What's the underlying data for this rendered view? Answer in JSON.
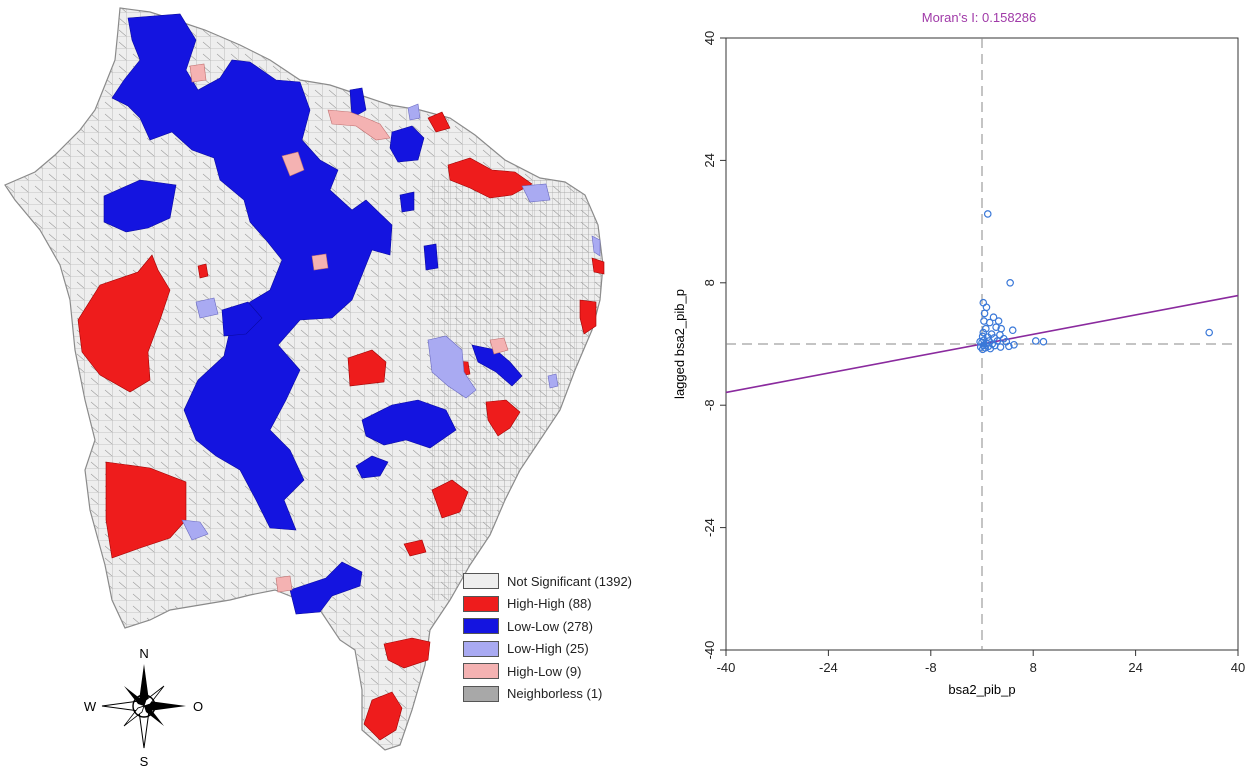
{
  "map": {
    "legend": [
      {
        "label": "Not Significant (1392)",
        "color": "#eeeeee"
      },
      {
        "label": "High-High (88)",
        "color": "#ee1c1c"
      },
      {
        "label": "Low-Low (278)",
        "color": "#1414e0"
      },
      {
        "label": "Low-High (25)",
        "color": "#a9aaf2"
      },
      {
        "label": "High-Low (9)",
        "color": "#f4b2b2"
      },
      {
        "label": "Neighborless (1)",
        "color": "#a8a8a8"
      }
    ],
    "compass": {
      "n": "N",
      "s": "S",
      "w": "W",
      "e": "O"
    }
  },
  "chart_data": {
    "type": "scatter",
    "title": "Moran's I: 0.158286",
    "xlabel": "bsa2_pib_p",
    "ylabel": "lagged bsa2_pib_p",
    "xlim": [
      -40,
      40
    ],
    "ylim": [
      -40,
      40
    ],
    "xticks": [
      "-40",
      "-24",
      "-8",
      "8",
      "24",
      "40"
    ],
    "yticks": [
      "-40",
      "-24",
      "-8",
      "8",
      "24",
      "40"
    ],
    "slope": 0.158286,
    "grid": false,
    "colors": {
      "points": "#3a78d8",
      "regression": "#8a2a9e",
      "title": "#a03aa8",
      "guides": "#888888"
    },
    "points": [
      {
        "x": 0.9,
        "y": 17.0
      },
      {
        "x": 4.4,
        "y": 8.0
      },
      {
        "x": 0.2,
        "y": 5.4
      },
      {
        "x": 0.7,
        "y": 4.8
      },
      {
        "x": 0.4,
        "y": 4.0
      },
      {
        "x": 1.8,
        "y": 3.5
      },
      {
        "x": 2.6,
        "y": 3.0
      },
      {
        "x": 0.3,
        "y": 3.0
      },
      {
        "x": 1.2,
        "y": 2.8
      },
      {
        "x": 2.2,
        "y": 2.2
      },
      {
        "x": 0.6,
        "y": 2.0
      },
      {
        "x": 3.0,
        "y": 2.0
      },
      {
        "x": 4.8,
        "y": 1.8
      },
      {
        "x": 0.2,
        "y": 1.5
      },
      {
        "x": 1.5,
        "y": 1.3
      },
      {
        "x": 2.8,
        "y": 1.2
      },
      {
        "x": 0.1,
        "y": 1.0
      },
      {
        "x": 0.9,
        "y": 0.9
      },
      {
        "x": 1.9,
        "y": 0.8
      },
      {
        "x": 3.4,
        "y": 0.7
      },
      {
        "x": 0.3,
        "y": 0.5
      },
      {
        "x": 1.1,
        "y": 0.4
      },
      {
        "x": 2.4,
        "y": 0.4
      },
      {
        "x": 0.0,
        "y": 0.2
      },
      {
        "x": 0.7,
        "y": 0.1
      },
      {
        "x": 1.6,
        "y": 0.0
      },
      {
        "x": 3.8,
        "y": 0.3
      },
      {
        "x": 0.2,
        "y": -0.2
      },
      {
        "x": 1.0,
        "y": -0.3
      },
      {
        "x": 2.0,
        "y": -0.2
      },
      {
        "x": 0.5,
        "y": -0.5
      },
      {
        "x": 2.9,
        "y": -0.4
      },
      {
        "x": 4.2,
        "y": -0.3
      },
      {
        "x": 0.1,
        "y": -0.7
      },
      {
        "x": 1.3,
        "y": -0.6
      },
      {
        "x": 5.0,
        "y": -0.1
      },
      {
        "x": 8.4,
        "y": 0.4
      },
      {
        "x": 9.6,
        "y": 0.3
      },
      {
        "x": 35.5,
        "y": 1.5
      },
      {
        "x": -0.3,
        "y": 0.3
      },
      {
        "x": -0.2,
        "y": -0.4
      }
    ]
  }
}
